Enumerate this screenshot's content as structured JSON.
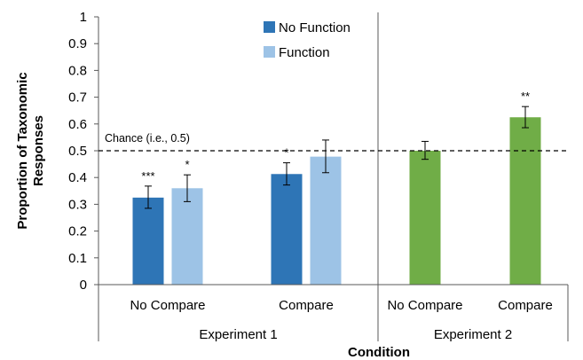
{
  "chart_data": {
    "type": "bar",
    "xlabel": "Condition",
    "ylabel_lines": [
      "Proportion of Taxonomic",
      "Responses"
    ],
    "ylim": [
      0,
      1
    ],
    "y_ticks": [
      "0",
      "0.1",
      "0.2",
      "0.3",
      "0.4",
      "0.5",
      "0.6",
      "0.7",
      "0.8",
      "0.9",
      "1"
    ],
    "grid": false,
    "legend_position": "top-center",
    "legend": [
      {
        "name": "No Function",
        "color": "#2E75B6"
      },
      {
        "name": "Function",
        "color": "#9DC3E6"
      }
    ],
    "reference_line": {
      "value": 0.5,
      "label": "Chance (i.e., 0.5)",
      "style": "dashed"
    },
    "groups": [
      {
        "name": "Experiment 1",
        "categories": [
          "No Compare",
          "Compare"
        ]
      },
      {
        "name": "Experiment 2",
        "categories": [
          "No Compare",
          "Compare"
        ]
      }
    ],
    "bars": [
      {
        "group": 0,
        "category": 0,
        "series": "No Function",
        "value": 0.325,
        "err_low": 0.285,
        "err_high": 0.368,
        "sig": "***",
        "color": "#2E75B6"
      },
      {
        "group": 0,
        "category": 0,
        "series": "Function",
        "value": 0.36,
        "err_low": 0.31,
        "err_high": 0.41,
        "sig": "*",
        "color": "#9DC3E6"
      },
      {
        "group": 0,
        "category": 1,
        "series": "No Function",
        "value": 0.413,
        "err_low": 0.372,
        "err_high": 0.455,
        "sig": "*",
        "color": "#2E75B6"
      },
      {
        "group": 0,
        "category": 1,
        "series": "Function",
        "value": 0.478,
        "err_low": 0.418,
        "err_high": 0.54,
        "sig": "",
        "color": "#9DC3E6"
      },
      {
        "group": 1,
        "category": 0,
        "series": "",
        "value": 0.5,
        "err_low": 0.468,
        "err_high": 0.535,
        "sig": "",
        "color": "#70AD47"
      },
      {
        "group": 1,
        "category": 1,
        "series": "",
        "value": 0.625,
        "err_low": 0.586,
        "err_high": 0.665,
        "sig": "**",
        "color": "#70AD47"
      }
    ]
  }
}
